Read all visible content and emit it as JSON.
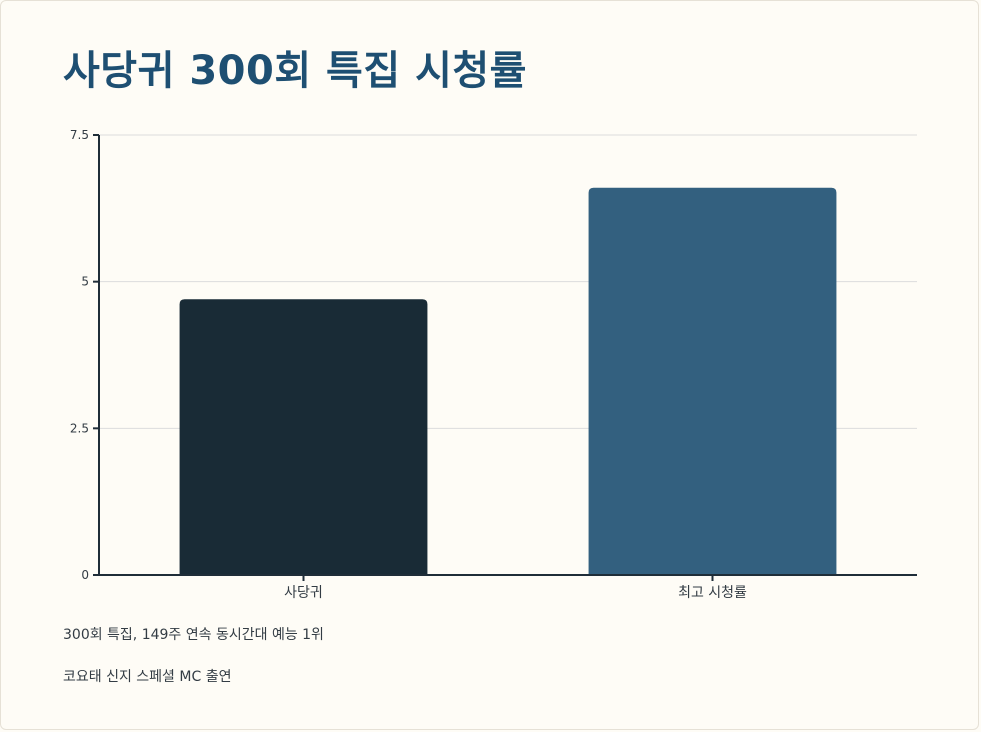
{
  "title": "사당귀 300회 특집 시청률",
  "notes": [
    "300회 특집, 149주 연속 동시간대 예능 1위",
    "코요태 신지 스페셜 MC 출연"
  ],
  "chart_data": {
    "type": "bar",
    "categories": [
      "사당귀",
      "최고 시청률"
    ],
    "values": [
      4.7,
      6.6
    ],
    "colors": [
      "#192b36",
      "#33607f"
    ],
    "ylim": [
      0,
      7.5
    ],
    "yticks": [
      0,
      2.5,
      5,
      7.5
    ],
    "ytick_labels": [
      "0",
      "2.5",
      "5",
      "7.5"
    ],
    "grid": true,
    "xlabel": "",
    "ylabel": ""
  }
}
